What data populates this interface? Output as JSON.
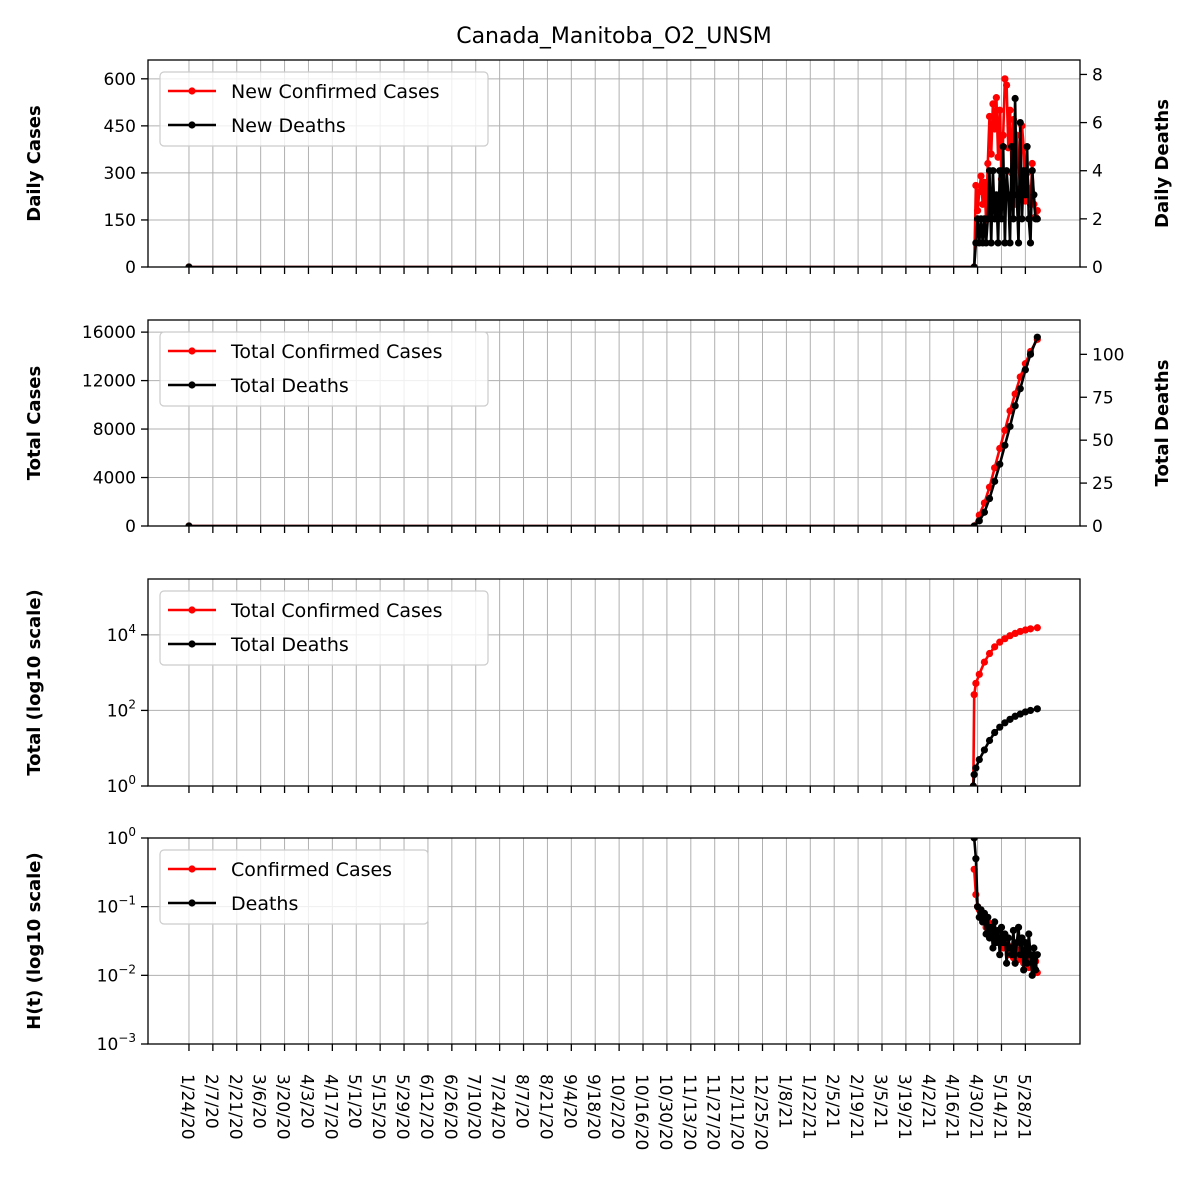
{
  "chart_data": {
    "type": "line",
    "title": "Canada_Manitoba_O2_UNSM",
    "x_tick_labels": [
      "1/24/20",
      "2/7/20",
      "2/21/20",
      "3/6/20",
      "3/20/20",
      "4/3/20",
      "4/17/20",
      "5/1/20",
      "5/15/20",
      "5/29/20",
      "6/12/20",
      "6/26/20",
      "7/10/20",
      "7/24/20",
      "8/7/20",
      "8/21/20",
      "9/4/20",
      "9/18/20",
      "10/2/20",
      "10/16/20",
      "10/30/20",
      "11/13/20",
      "11/27/20",
      "12/11/20",
      "12/25/20",
      "1/8/21",
      "1/22/21",
      "2/5/21",
      "2/19/21",
      "3/5/21",
      "3/19/21",
      "4/2/21",
      "4/16/21",
      "4/30/21",
      "5/14/21",
      "5/28/21"
    ],
    "x_start": "1/24/20",
    "grid": true,
    "panels": [
      {
        "ylabel": "Daily Cases",
        "y2label": "Daily Deaths",
        "scale": "linear",
        "ylim": [
          0,
          660
        ],
        "yticks": [
          "0",
          "150",
          "300",
          "450",
          "600"
        ],
        "ytick_values": [
          0,
          150,
          300,
          450,
          600
        ],
        "y2lim": [
          0,
          8.6
        ],
        "y2ticks": [
          "0",
          "2",
          "4",
          "6",
          "8"
        ],
        "y2tick_values": [
          0,
          2,
          4,
          6,
          8
        ],
        "legend": [
          "New Confirmed Cases",
          "New Deaths"
        ],
        "legend_position": "upper-left"
      },
      {
        "ylabel": "Total Cases",
        "y2label": "Total Deaths",
        "scale": "linear",
        "ylim": [
          0,
          17000
        ],
        "yticks": [
          "0",
          "4000",
          "8000",
          "12000",
          "16000"
        ],
        "ytick_values": [
          0,
          4000,
          8000,
          12000,
          16000
        ],
        "y2lim": [
          0,
          120
        ],
        "y2ticks": [
          "0",
          "25",
          "50",
          "75",
          "100"
        ],
        "y2tick_values": [
          0,
          25,
          50,
          75,
          100
        ],
        "legend": [
          "Total Confirmed Cases",
          "Total Deaths"
        ],
        "legend_position": "upper-left"
      },
      {
        "ylabel": "Total (log10 scale)",
        "scale": "log",
        "ylim": [
          1,
          300000
        ],
        "yticks": [
          {
            "base": "10",
            "exp": "0"
          },
          {
            "base": "10",
            "exp": "2"
          },
          {
            "base": "10",
            "exp": "4"
          }
        ],
        "ytick_values": [
          1,
          100,
          10000
        ],
        "legend": [
          "Total Confirmed Cases",
          "Total Deaths"
        ],
        "legend_position": "upper-left"
      },
      {
        "ylabel": "H(t) (log10 scale)",
        "scale": "log",
        "ylim": [
          0.001,
          1
        ],
        "yticks": [
          {
            "base": "10",
            "exp": "−3"
          },
          {
            "base": "10",
            "exp": "−2"
          },
          {
            "base": "10",
            "exp": "−1"
          },
          {
            "base": "10",
            "exp": "0"
          }
        ],
        "ytick_values": [
          0.001,
          0.01,
          0.1,
          1
        ],
        "legend": [
          "Confirmed Cases",
          "Deaths"
        ],
        "legend_position": "upper-left"
      }
    ],
    "series": [
      {
        "name": "New Confirmed Cases",
        "panel": 0,
        "axis": "left",
        "color": "#ff0000",
        "x": [
          0,
          460,
          461,
          462,
          463,
          464,
          465,
          466,
          467,
          468,
          469,
          470,
          471,
          472,
          473,
          474,
          475,
          476,
          477,
          478,
          479,
          480,
          481,
          482,
          483,
          484,
          485,
          486,
          487,
          488,
          489,
          490,
          491,
          492,
          493,
          494,
          495,
          496,
          497
        ],
        "y": [
          0,
          0,
          260,
          180,
          240,
          290,
          200,
          270,
          150,
          330,
          480,
          360,
          520,
          440,
          540,
          350,
          500,
          280,
          420,
          600,
          580,
          380,
          500,
          300,
          470,
          200,
          420,
          330,
          250,
          450,
          380,
          210,
          300,
          250,
          200,
          330,
          200,
          160,
          180
        ]
      },
      {
        "name": "New Deaths",
        "panel": 0,
        "axis": "right",
        "color": "#000000",
        "x": [
          0,
          460,
          461,
          462,
          463,
          464,
          465,
          466,
          467,
          468,
          469,
          470,
          471,
          472,
          473,
          474,
          475,
          476,
          477,
          478,
          479,
          480,
          481,
          482,
          483,
          484,
          485,
          486,
          487,
          488,
          489,
          490,
          491,
          492,
          493,
          494,
          495,
          496,
          497
        ],
        "y": [
          0,
          0,
          1,
          2,
          1,
          2,
          1,
          2,
          1,
          2,
          4,
          1,
          4,
          2,
          3,
          1,
          4,
          2,
          5,
          1,
          4,
          3,
          1,
          5,
          2,
          7,
          3,
          1,
          6,
          2,
          4,
          3,
          5,
          2,
          1,
          4,
          3,
          2,
          2
        ]
      },
      {
        "name": "Total Confirmed Cases",
        "panel": 1,
        "axis": "left",
        "color": "#ff0000",
        "x": [
          0,
          460,
          463,
          466,
          469,
          472,
          475,
          478,
          481,
          484,
          487,
          490,
          493,
          497
        ],
        "y": [
          0,
          0,
          900,
          1900,
          3200,
          4800,
          6400,
          7900,
          9500,
          10900,
          12300,
          13400,
          14400,
          15400
        ]
      },
      {
        "name": "Total Deaths",
        "panel": 1,
        "axis": "right",
        "color": "#000000",
        "x": [
          0,
          460,
          463,
          466,
          469,
          472,
          475,
          478,
          481,
          484,
          487,
          490,
          493,
          497
        ],
        "y": [
          0,
          0,
          3,
          8,
          16,
          26,
          36,
          47,
          58,
          70,
          80,
          91,
          100,
          110
        ]
      },
      {
        "name": "Total Confirmed Cases",
        "panel": 2,
        "color": "#ff0000",
        "x": [
          459.5,
          460,
          461,
          463,
          466,
          469,
          472,
          475,
          478,
          481,
          484,
          487,
          490,
          493,
          497
        ],
        "y": [
          1,
          260,
          520,
          900,
          1900,
          3200,
          4800,
          6400,
          7900,
          9500,
          10900,
          12300,
          13400,
          14400,
          15400
        ]
      },
      {
        "name": "Total Deaths",
        "panel": 2,
        "color": "#000000",
        "x": [
          459.5,
          460,
          461,
          463,
          466,
          469,
          472,
          475,
          478,
          481,
          484,
          487,
          490,
          493,
          497
        ],
        "y": [
          1,
          2,
          3,
          5,
          9,
          16,
          26,
          36,
          47,
          58,
          70,
          80,
          91,
          100,
          110
        ]
      },
      {
        "name": "Confirmed Cases",
        "panel": 3,
        "color": "#ff0000",
        "x": [
          460,
          461,
          462,
          463,
          464,
          465,
          466,
          467,
          468,
          469,
          470,
          471,
          472,
          473,
          474,
          475,
          476,
          477,
          478,
          479,
          480,
          481,
          482,
          483,
          484,
          485,
          486,
          487,
          488,
          489,
          490,
          491,
          492,
          493,
          494,
          495,
          496,
          497
        ],
        "y": [
          0.35,
          0.15,
          0.1,
          0.09,
          0.08,
          0.06,
          0.07,
          0.05,
          0.06,
          0.045,
          0.05,
          0.04,
          0.045,
          0.035,
          0.04,
          0.03,
          0.035,
          0.025,
          0.03,
          0.028,
          0.02,
          0.026,
          0.022,
          0.018,
          0.025,
          0.02,
          0.017,
          0.022,
          0.018,
          0.015,
          0.02,
          0.016,
          0.013,
          0.018,
          0.014,
          0.012,
          0.016,
          0.011
        ]
      },
      {
        "name": "Deaths",
        "panel": 3,
        "color": "#000000",
        "x": [
          460,
          461,
          462,
          463,
          464,
          465,
          466,
          467,
          468,
          469,
          470,
          471,
          472,
          473,
          474,
          475,
          476,
          477,
          478,
          479,
          480,
          481,
          482,
          483,
          484,
          485,
          486,
          487,
          488,
          489,
          490,
          491,
          492,
          493,
          494,
          495,
          496,
          497
        ],
        "y": [
          1,
          0.5,
          0.1,
          0.07,
          0.09,
          0.06,
          0.08,
          0.04,
          0.07,
          0.035,
          0.05,
          0.025,
          0.06,
          0.03,
          0.045,
          0.02,
          0.05,
          0.03,
          0.04,
          0.015,
          0.035,
          0.025,
          0.02,
          0.045,
          0.015,
          0.03,
          0.05,
          0.02,
          0.035,
          0.012,
          0.03,
          0.015,
          0.04,
          0.02,
          0.01,
          0.025,
          0.012,
          0.02
        ]
      }
    ]
  }
}
